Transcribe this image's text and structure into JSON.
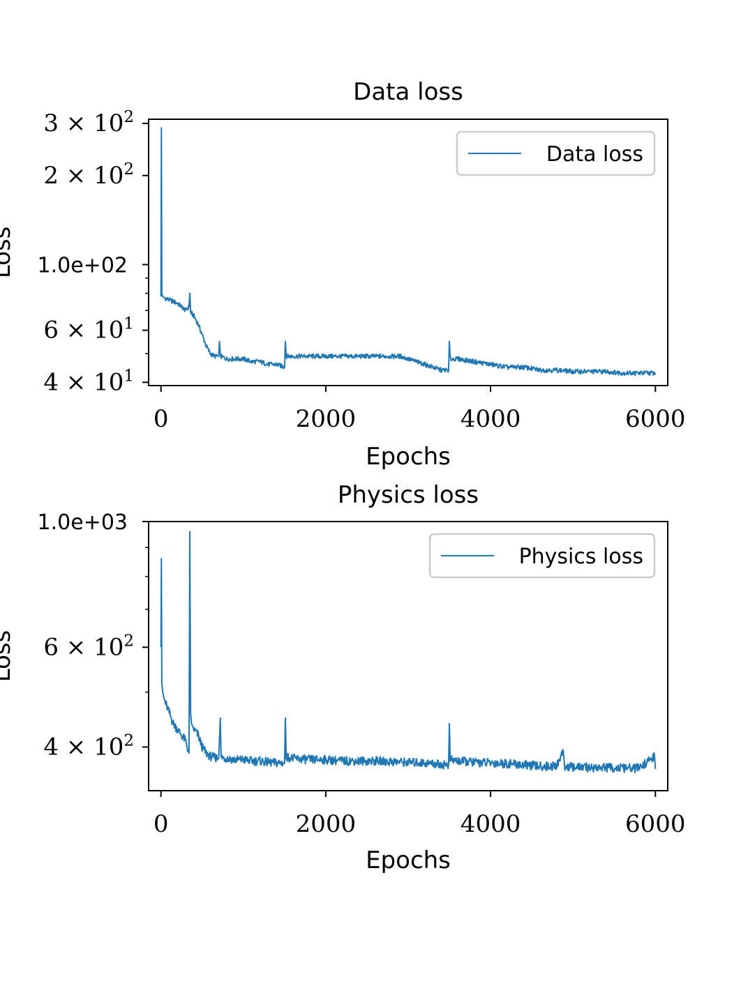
{
  "chart_data": [
    {
      "type": "line",
      "title": "Data loss",
      "xlabel": "Epochs",
      "ylabel": "Loss",
      "yscale": "log",
      "xlim": [
        -150,
        6150
      ],
      "ylim": [
        39,
        310
      ],
      "legend": {
        "placement": "top-right",
        "entries": [
          "Data loss"
        ]
      },
      "color": "#1f77b4",
      "xticks": [
        {
          "v": 0,
          "label": "0"
        },
        {
          "v": 2000,
          "label": "2000"
        },
        {
          "v": 4000,
          "label": "4000"
        },
        {
          "v": 6000,
          "label": "6000"
        }
      ],
      "yticks": [
        {
          "v": 300,
          "base": "3 × 10",
          "exp": "2"
        },
        {
          "v": 200,
          "base": "2 × 10",
          "exp": "2"
        },
        {
          "v": 100,
          "label": "1.0e+02"
        },
        {
          "v": 60,
          "base": "6 × 10",
          "exp": "1"
        },
        {
          "v": 40,
          "base": "4 × 10",
          "exp": "1"
        }
      ],
      "minor_yticks": [
        50,
        70,
        80,
        90
      ],
      "series": [
        {
          "name": "Data loss",
          "x": [
            0,
            5,
            10,
            20,
            50,
            100,
            150,
            200,
            250,
            300,
            340,
            350,
            360,
            400,
            450,
            500,
            550,
            600,
            650,
            700,
            710,
            720,
            800,
            900,
            1000,
            1100,
            1200,
            1300,
            1400,
            1500,
            1510,
            1520,
            1600,
            1800,
            2000,
            2200,
            2400,
            2600,
            2800,
            2900,
            3000,
            3100,
            3200,
            3300,
            3400,
            3490,
            3500,
            3510,
            3600,
            3800,
            4000,
            4200,
            4400,
            4600,
            4800,
            5000,
            5200,
            5400,
            5600,
            5800,
            6000
          ],
          "y": [
            78,
            290,
            80,
            78,
            77,
            76,
            75,
            74,
            72,
            70,
            72,
            80,
            69,
            67,
            63,
            58,
            53,
            50,
            49,
            49,
            55,
            49,
            48,
            48,
            48,
            47,
            47,
            46,
            46,
            45,
            55,
            49,
            49,
            49,
            49,
            49,
            49,
            49,
            49,
            49,
            48,
            47,
            46,
            45,
            44,
            44,
            55,
            48,
            48,
            47,
            46,
            45,
            45,
            44,
            44,
            43.5,
            43.5,
            43.5,
            43,
            43,
            43
          ]
        }
      ]
    },
    {
      "type": "line",
      "title": "Physics loss",
      "xlabel": "Epochs",
      "ylabel": "Loss",
      "yscale": "log",
      "xlim": [
        -150,
        6150
      ],
      "ylim": [
        335,
        1000
      ],
      "legend": {
        "placement": "top-right",
        "entries": [
          "Physics loss"
        ]
      },
      "color": "#1f77b4",
      "xticks": [
        {
          "v": 0,
          "label": "0"
        },
        {
          "v": 2000,
          "label": "2000"
        },
        {
          "v": 4000,
          "label": "4000"
        },
        {
          "v": 6000,
          "label": "6000"
        }
      ],
      "yticks": [
        {
          "v": 1000,
          "label": "1.0e+03"
        },
        {
          "v": 600,
          "base": "6 × 10",
          "exp": "2"
        },
        {
          "v": 400,
          "base": "4 × 10",
          "exp": "2"
        }
      ],
      "minor_yticks": [
        500,
        700,
        800,
        900
      ],
      "series": [
        {
          "name": "Physics loss",
          "x": [
            0,
            5,
            10,
            20,
            50,
            100,
            150,
            200,
            250,
            300,
            340,
            350,
            360,
            370,
            400,
            450,
            500,
            550,
            600,
            700,
            720,
            730,
            800,
            900,
            1000,
            1100,
            1200,
            1300,
            1400,
            1500,
            1510,
            1520,
            1600,
            1800,
            2000,
            2200,
            2400,
            2600,
            2800,
            3000,
            3200,
            3400,
            3490,
            3500,
            3510,
            3600,
            3800,
            4000,
            4200,
            4400,
            4600,
            4800,
            4880,
            4900,
            5000,
            5200,
            5400,
            5600,
            5800,
            5990,
            6000
          ],
          "y": [
            600,
            860,
            520,
            500,
            480,
            460,
            440,
            430,
            420,
            410,
            390,
            960,
            460,
            440,
            430,
            420,
            400,
            390,
            385,
            382,
            450,
            384,
            382,
            380,
            380,
            378,
            378,
            376,
            375,
            375,
            450,
            385,
            382,
            380,
            380,
            378,
            378,
            378,
            377,
            376,
            375,
            373,
            372,
            440,
            380,
            378,
            376,
            375,
            374,
            372,
            370,
            370,
            395,
            370,
            369,
            368,
            368,
            367,
            367,
            385,
            366
          ]
        }
      ]
    }
  ]
}
